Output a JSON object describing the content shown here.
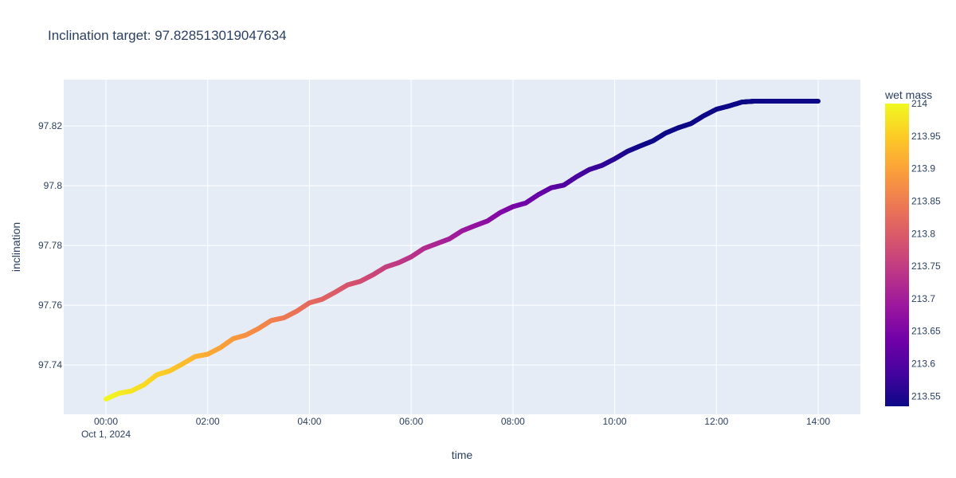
{
  "chart_data": {
    "type": "scatter",
    "mode": "lines",
    "title": "Inclination target: 97.828513019047634",
    "xlabel": "time",
    "ylabel": "inclination",
    "x_tick_labels": [
      "00:00",
      "02:00",
      "04:00",
      "06:00",
      "08:00",
      "10:00",
      "12:00",
      "14:00"
    ],
    "x_tick_hours": [
      0,
      2,
      4,
      6,
      8,
      10,
      12,
      14
    ],
    "x_date_label": "Oct 1, 2024",
    "x_range_hours": [
      -0.83,
      14.83
    ],
    "y_tick_values": [
      97.74,
      97.76,
      97.78,
      97.8,
      97.82
    ],
    "y_tick_labels": [
      "97.74",
      "97.76",
      "97.78",
      "97.8",
      "97.82"
    ],
    "y_range": [
      97.7235,
      97.8355
    ],
    "series": [
      {
        "x_hours": [
          0,
          0.25,
          0.5,
          0.75,
          1,
          1.25,
          1.5,
          1.75,
          2,
          2.25,
          2.5,
          2.75,
          3,
          3.25,
          3.5,
          3.75,
          4,
          4.25,
          4.5,
          4.75,
          5,
          5.25,
          5.5,
          5.75,
          6,
          6.25,
          6.5,
          6.75,
          7,
          7.25,
          7.5,
          7.75,
          8,
          8.25,
          8.5,
          8.75,
          9,
          9.25,
          9.5,
          9.75,
          10,
          10.25,
          10.5,
          10.75,
          11,
          11.25,
          11.5,
          11.75,
          12,
          12.25,
          12.5,
          12.75,
          13,
          13.25,
          13.5,
          13.75,
          14
        ],
        "inclination": [
          97.7286,
          97.7305,
          97.7313,
          97.7334,
          97.7367,
          97.738,
          97.7403,
          97.7428,
          97.7436,
          97.7458,
          97.7488,
          97.75,
          97.7522,
          97.7549,
          97.7558,
          97.758,
          97.7608,
          97.762,
          97.7643,
          97.7668,
          97.768,
          97.7702,
          97.7728,
          97.7742,
          97.7762,
          97.779,
          97.7806,
          97.7822,
          97.7849,
          97.7866,
          97.7882,
          97.791,
          97.793,
          97.7942,
          97.797,
          97.7993,
          97.8002,
          97.803,
          97.8054,
          97.8068,
          97.809,
          97.8115,
          97.8133,
          97.815,
          97.8176,
          97.8194,
          97.8208,
          97.8234,
          97.8256,
          97.8267,
          97.828,
          97.8283,
          97.8283,
          97.8283,
          97.8283,
          97.8283,
          97.8283
        ],
        "wet_mass": [
          214.0,
          213.989,
          213.978,
          213.967,
          213.956,
          213.945,
          213.934,
          213.923,
          213.912,
          213.901,
          213.89,
          213.879,
          213.868,
          213.857,
          213.846,
          213.835,
          213.824,
          213.813,
          213.802,
          213.791,
          213.78,
          213.769,
          213.758,
          213.747,
          213.736,
          213.725,
          213.714,
          213.703,
          213.692,
          213.681,
          213.67,
          213.659,
          213.648,
          213.637,
          213.626,
          213.615,
          213.604,
          213.593,
          213.582,
          213.571,
          213.56,
          213.549,
          213.538,
          213.532,
          213.53,
          213.53,
          213.53,
          213.53,
          213.53,
          213.53,
          213.53,
          213.53,
          213.53,
          213.53,
          213.53,
          213.53,
          213.53
        ]
      }
    ],
    "colorbar": {
      "title": "wet mass",
      "range": [
        213.5345,
        214.0
      ],
      "tick_values": [
        214,
        213.95,
        213.9,
        213.85,
        213.8,
        213.75,
        213.7,
        213.65,
        213.6,
        213.55
      ],
      "tick_labels": [
        "214",
        "213.95",
        "213.9",
        "213.85",
        "213.8",
        "213.75",
        "213.7",
        "213.65",
        "213.6",
        "213.55"
      ],
      "colorscale": [
        "#0d0887",
        "#46039f",
        "#7201a8",
        "#9c179e",
        "#bd3786",
        "#d8576b",
        "#ed7953",
        "#fb9f3a",
        "#fdca26",
        "#f0f921"
      ]
    },
    "grid": true,
    "legend": "colorbar-right",
    "plot_bg": "#e5ecf6"
  }
}
